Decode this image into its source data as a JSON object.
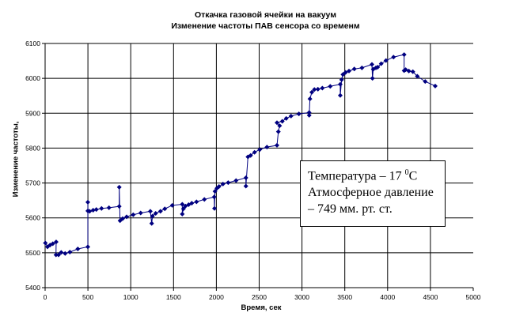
{
  "chart_data": {
    "type": "line",
    "title": [
      "Откачка газовой ячейки на вакуум",
      "Изменение частоты ПАВ сенсора со временм"
    ],
    "xlabel": "Время, сек",
    "ylabel": "Изменение частоты,",
    "xlim": [
      0,
      5000
    ],
    "ylim": [
      5400,
      6100
    ],
    "xticks": [
      0,
      500,
      1000,
      1500,
      2000,
      2500,
      3000,
      3500,
      4000,
      4500,
      5000
    ],
    "yticks": [
      5400,
      5500,
      5600,
      5700,
      5800,
      5900,
      6000,
      6100
    ],
    "grid": true,
    "series_color": "#000080",
    "series": [
      {
        "name": "frequency",
        "points": [
          [
            3,
            5528
          ],
          [
            28,
            5517
          ],
          [
            58,
            5522
          ],
          [
            90,
            5526
          ],
          [
            129,
            5531
          ],
          [
            127,
            5494
          ],
          [
            157,
            5494
          ],
          [
            188,
            5501
          ],
          [
            234,
            5498
          ],
          [
            289,
            5502
          ],
          [
            382,
            5511
          ],
          [
            499,
            5517
          ],
          [
            499,
            5645
          ],
          [
            499,
            5620
          ],
          [
            520,
            5619
          ],
          [
            561,
            5622
          ],
          [
            598,
            5624
          ],
          [
            659,
            5627
          ],
          [
            746,
            5629
          ],
          [
            866,
            5633
          ],
          [
            866,
            5688
          ],
          [
            875,
            5592
          ],
          [
            906,
            5598
          ],
          [
            952,
            5603
          ],
          [
            1029,
            5609
          ],
          [
            1116,
            5614
          ],
          [
            1229,
            5619
          ],
          [
            1245,
            5584
          ],
          [
            1254,
            5605
          ],
          [
            1291,
            5613
          ],
          [
            1347,
            5619
          ],
          [
            1398,
            5626
          ],
          [
            1485,
            5636
          ],
          [
            1602,
            5639
          ],
          [
            1602,
            5611
          ],
          [
            1615,
            5626
          ],
          [
            1639,
            5634
          ],
          [
            1676,
            5638
          ],
          [
            1713,
            5642
          ],
          [
            1768,
            5646
          ],
          [
            1860,
            5653
          ],
          [
            1975,
            5660
          ],
          [
            1978,
            5627
          ],
          [
            1984,
            5676
          ],
          [
            2006,
            5685
          ],
          [
            2031,
            5690
          ],
          [
            2077,
            5697
          ],
          [
            2138,
            5701
          ],
          [
            2230,
            5707
          ],
          [
            2345,
            5715
          ],
          [
            2345,
            5691
          ],
          [
            2369,
            5775
          ],
          [
            2400,
            5779
          ],
          [
            2446,
            5788
          ],
          [
            2507,
            5796
          ],
          [
            2591,
            5803
          ],
          [
            2708,
            5808
          ],
          [
            2724,
            5847
          ],
          [
            2739,
            5864
          ],
          [
            2708,
            5873
          ],
          [
            2770,
            5877
          ],
          [
            2816,
            5885
          ],
          [
            2872,
            5892
          ],
          [
            2964,
            5898
          ],
          [
            3084,
            5902
          ],
          [
            3084,
            5894
          ],
          [
            3093,
            5941
          ],
          [
            3115,
            5960
          ],
          [
            3145,
            5968
          ],
          [
            3186,
            5969
          ],
          [
            3238,
            5972
          ],
          [
            3330,
            5977
          ],
          [
            3447,
            5983
          ],
          [
            3447,
            5951
          ],
          [
            3463,
            5996
          ],
          [
            3478,
            6011
          ],
          [
            3509,
            6017
          ],
          [
            3549,
            6021
          ],
          [
            3611,
            6027
          ],
          [
            3700,
            6030
          ],
          [
            3817,
            6040
          ],
          [
            3823,
            6000
          ],
          [
            3832,
            6026
          ],
          [
            3863,
            6030
          ],
          [
            3884,
            6032
          ],
          [
            3925,
            6042
          ],
          [
            3981,
            6051
          ],
          [
            4069,
            6061
          ],
          [
            4193,
            6068
          ],
          [
            4193,
            6022
          ],
          [
            4211,
            6025
          ],
          [
            4248,
            6021
          ],
          [
            4295,
            6019
          ],
          [
            4347,
            6006
          ],
          [
            4439,
            5991
          ],
          [
            4556,
            5978
          ]
        ]
      }
    ],
    "annotation": {
      "line1": "Температура – 17 ",
      "degree": "0",
      "unit": "С",
      "line2": "Атмосферное давление",
      "line3": "– 749 мм. рт. ст."
    }
  }
}
